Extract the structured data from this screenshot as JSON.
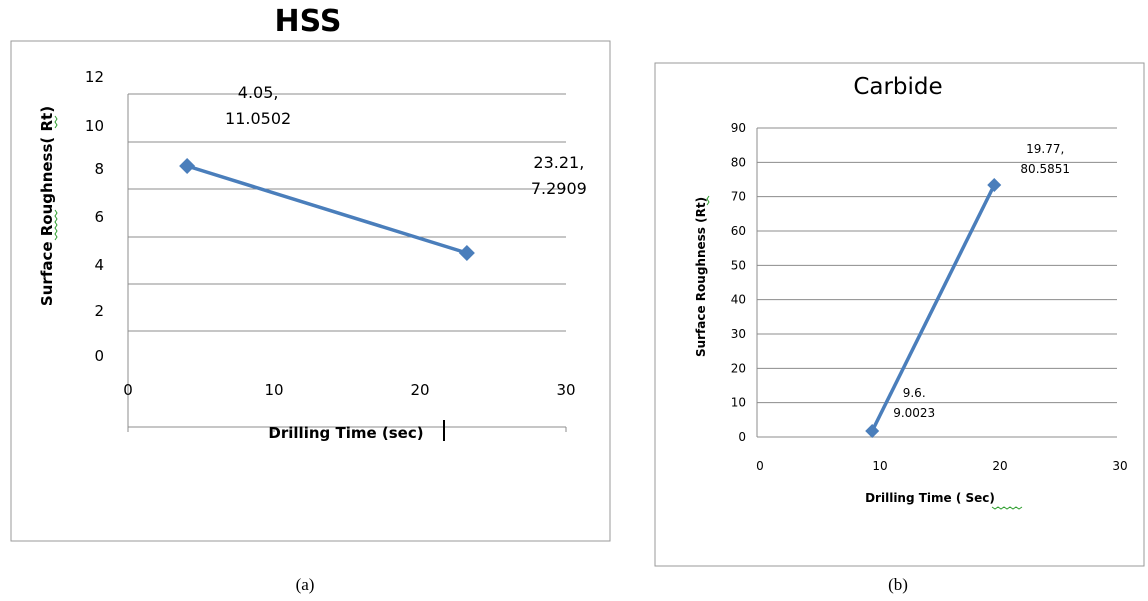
{
  "chart_data": [
    {
      "type": "line",
      "title": "HSS",
      "xlabel": "Drilling Time (sec)",
      "ylabel": "Surface Roughness( Rt)",
      "xlim": [
        0,
        30
      ],
      "ylim": [
        0,
        12
      ],
      "xticks": [
        "0",
        "10",
        "20",
        "30"
      ],
      "yticks": [
        "0",
        "2",
        "4",
        "6",
        "8",
        "10",
        "12"
      ],
      "grid": true,
      "legend": "none",
      "caption": "(a)",
      "series": [
        {
          "x": [
            4.05,
            23.21
          ],
          "y": [
            11.0502,
            7.2909
          ],
          "labels": [
            [
              "4.05,",
              "11.0502"
            ],
            [
              "23.21,",
              "7.2909"
            ]
          ]
        }
      ]
    },
    {
      "type": "line",
      "title": "Carbide",
      "xlabel": "Drilling Time ( Sec)",
      "ylabel": "Surface Roughness (Rt)",
      "xlim": [
        0,
        30
      ],
      "ylim": [
        0,
        90
      ],
      "xticks": [
        "0",
        "10",
        "20",
        "30"
      ],
      "yticks": [
        "0",
        "10",
        "20",
        "30",
        "40",
        "50",
        "60",
        "70",
        "80",
        "90"
      ],
      "grid": true,
      "legend": "none",
      "caption": "(b)",
      "series": [
        {
          "x": [
            9.6,
            19.77
          ],
          "y": [
            9.0023,
            80.5851
          ],
          "labels": [
            [
              "9.6.",
              "9.0023"
            ],
            [
              "19.77,",
              "80.5851"
            ]
          ]
        }
      ]
    }
  ],
  "colors": {
    "series": "#4a7ebb",
    "grid": "#8c8c8c",
    "frame": "#9a9a9a"
  }
}
